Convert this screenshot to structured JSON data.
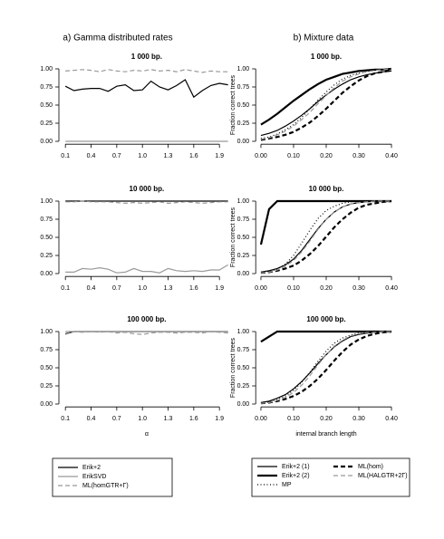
{
  "headings": [
    "a) Gamma distributed rates",
    "b) Mixture data"
  ],
  "chart_data": [
    {
      "type": "line",
      "title": "1 000 bp.",
      "x": [
        0.1,
        0.2,
        0.3,
        0.4,
        0.5,
        0.6,
        0.7,
        0.8,
        0.9,
        1.0,
        1.1,
        1.2,
        1.3,
        1.4,
        1.5,
        1.6,
        1.7,
        1.8,
        1.9,
        2.0
      ],
      "xlim": [
        0.024,
        2.076
      ],
      "xticks": [
        0.1,
        0.4,
        0.7,
        {
          "value": 1,
          "label": "1.0"
        },
        1.3,
        1.6,
        1.9
      ],
      "ylim": [
        -0.04,
        1.04
      ],
      "yticks": [
        {
          "value": 0,
          "label": "0.00"
        },
        {
          "value": 0.25,
          "label": "0.25"
        },
        {
          "value": 0.5,
          "label": "0.50"
        },
        {
          "value": 0.75,
          "label": "0.75"
        },
        {
          "value": 1,
          "label": "1.00"
        }
      ],
      "series": [
        {
          "name": "Erik+2",
          "color": "#000000",
          "style": "solid",
          "weight": "normal",
          "values": [
            0.76,
            0.7,
            0.72,
            0.73,
            0.73,
            0.69,
            0.76,
            0.78,
            0.7,
            0.71,
            0.83,
            0.75,
            0.71,
            0.77,
            0.85,
            0.61,
            0.7,
            0.77,
            0.8,
            0.78
          ]
        },
        {
          "name": "ErikSVD",
          "color": "#999999",
          "style": "solid",
          "weight": "normal",
          "values": [
            0,
            0,
            0,
            0,
            0,
            0,
            0,
            0,
            0,
            0,
            0,
            0,
            0,
            0,
            0,
            0,
            0,
            0,
            0,
            0
          ]
        },
        {
          "name": "ML(homGTR+Γ)",
          "color": "#999999",
          "style": "dashed",
          "weight": "normal",
          "values": [
            0.97,
            0.98,
            0.99,
            0.98,
            0.96,
            0.99,
            0.97,
            0.96,
            0.98,
            0.97,
            0.99,
            0.97,
            0.98,
            0.96,
            0.99,
            0.97,
            0.95,
            0.97,
            0.96,
            0.96
          ]
        }
      ]
    },
    {
      "type": "line",
      "title": "10 000 bp.",
      "x": [
        0.1,
        0.2,
        0.3,
        0.4,
        0.5,
        0.6,
        0.7,
        0.8,
        0.9,
        1.0,
        1.1,
        1.2,
        1.3,
        1.4,
        1.5,
        1.6,
        1.7,
        1.8,
        1.9,
        2.0
      ],
      "xlim": [
        0.024,
        2.076
      ],
      "xticks": [
        0.1,
        0.4,
        0.7,
        {
          "value": 1,
          "label": "1.0"
        },
        1.3,
        1.6,
        1.9
      ],
      "ylim": [
        -0.04,
        1.04
      ],
      "yticks": [
        {
          "value": 0,
          "label": "0.00"
        },
        {
          "value": 0.25,
          "label": "0.25"
        },
        {
          "value": 0.5,
          "label": "0.50"
        },
        {
          "value": 0.75,
          "label": "0.75"
        },
        {
          "value": 1,
          "label": "1.00"
        }
      ],
      "series": [
        {
          "name": "Erik+2",
          "color": "#000000",
          "style": "solid",
          "weight": "normal",
          "values": [
            1,
            1,
            1,
            1,
            1,
            1,
            1,
            1,
            1,
            1,
            1,
            1,
            1,
            1,
            1,
            1,
            1,
            1,
            1,
            1
          ]
        },
        {
          "name": "ErikSVD",
          "color": "#999999",
          "style": "solid",
          "weight": "normal",
          "values": [
            0.02,
            0.02,
            0.07,
            0.06,
            0.08,
            0.06,
            0.01,
            0.02,
            0.07,
            0.03,
            0.03,
            0.01,
            0.07,
            0.04,
            0.03,
            0.04,
            0.03,
            0.05,
            0.05,
            0.12
          ]
        },
        {
          "name": "ML(homGTR+Γ)",
          "color": "#999999",
          "style": "dashed",
          "weight": "normal",
          "values": [
            0.99,
            0.99,
            1,
            0.99,
            0.99,
            0.99,
            0.98,
            0.97,
            0.98,
            0.97,
            0.98,
            0.99,
            0.97,
            0.98,
            0.99,
            0.98,
            0.97,
            0.98,
            0.99,
            0.99
          ]
        }
      ]
    },
    {
      "type": "line",
      "title": "100 000 bp.",
      "xlabel": "α",
      "x": [
        0.1,
        0.2,
        0.3,
        0.4,
        0.5,
        0.6,
        0.7,
        0.8,
        0.9,
        1.0,
        1.1,
        1.2,
        1.3,
        1.4,
        1.5,
        1.6,
        1.7,
        1.8,
        1.9,
        2.0
      ],
      "xlim": [
        0.024,
        2.076
      ],
      "xticks": [
        0.1,
        0.4,
        0.7,
        {
          "value": 1,
          "label": "1.0"
        },
        1.3,
        1.6,
        1.9
      ],
      "ylim": [
        -0.04,
        1.04
      ],
      "yticks": [
        {
          "value": 0,
          "label": "0.00"
        },
        {
          "value": 0.25,
          "label": "0.25"
        },
        {
          "value": 0.5,
          "label": "0.50"
        },
        {
          "value": 0.75,
          "label": "0.75"
        },
        {
          "value": 1,
          "label": "1.00"
        }
      ],
      "series": [
        {
          "name": "Erik+2",
          "color": "#000000",
          "style": "solid",
          "weight": "normal",
          "values": [
            0.97,
            1,
            1,
            1,
            1,
            1,
            1,
            1,
            1,
            1,
            1,
            1,
            1,
            1,
            1,
            1,
            1,
            1,
            1,
            1
          ]
        },
        {
          "name": "ErikSVD",
          "color": "#999999",
          "style": "solid",
          "weight": "normal",
          "values": [
            1,
            1,
            1,
            1,
            1,
            1,
            1,
            1,
            1,
            1,
            1,
            1,
            1,
            1,
            1,
            1,
            1,
            1,
            1,
            1
          ]
        },
        {
          "name": "ML(homGTR+Γ)",
          "color": "#999999",
          "style": "dashed",
          "weight": "normal",
          "values": [
            0.96,
            1,
            0.99,
            1,
            0.99,
            1,
            0.98,
            0.99,
            0.97,
            0.96,
            0.98,
            0.99,
            0.99,
            0.98,
            0.99,
            0.99,
            0.98,
            1,
            0.99,
            0.98
          ]
        }
      ]
    },
    {
      "type": "line",
      "title": "1 000 bp.",
      "ylabel": "Fraction correct trees",
      "x": [
        0,
        0.025,
        0.05,
        0.075,
        0.1,
        0.125,
        0.15,
        0.175,
        0.2,
        0.225,
        0.25,
        0.275,
        0.3,
        0.325,
        0.35,
        0.375,
        0.4
      ],
      "xlim": [
        -0.016,
        0.416
      ],
      "xticks": [
        {
          "value": 0,
          "label": "0.00"
        },
        {
          "value": 0.1,
          "label": "0.10"
        },
        {
          "value": 0.2,
          "label": "0.20"
        },
        {
          "value": 0.3,
          "label": "0.30"
        },
        {
          "value": 0.4,
          "label": "0.40"
        }
      ],
      "ylim": [
        -0.04,
        1.04
      ],
      "yticks": [
        {
          "value": 0,
          "label": "0.00"
        },
        {
          "value": 0.25,
          "label": "0.25"
        },
        {
          "value": 0.5,
          "label": "0.50"
        },
        {
          "value": 0.75,
          "label": "0.75"
        },
        {
          "value": 1,
          "label": "1.00"
        }
      ],
      "series": [
        {
          "name": "Erik+2 (1)",
          "color": "#000000",
          "style": "solid",
          "weight": "normal",
          "values": [
            0.08,
            0.11,
            0.15,
            0.21,
            0.28,
            0.36,
            0.45,
            0.55,
            0.64,
            0.72,
            0.79,
            0.85,
            0.89,
            0.92,
            0.94,
            0.96,
            0.97
          ]
        },
        {
          "name": "Erik+2 (2)",
          "color": "#000000",
          "style": "solid",
          "weight": "thick",
          "values": [
            0.23,
            0.3,
            0.38,
            0.47,
            0.56,
            0.64,
            0.72,
            0.79,
            0.85,
            0.89,
            0.93,
            0.95,
            0.97,
            0.98,
            0.99,
            0.99,
            1
          ]
        },
        {
          "name": "MP",
          "color": "#000000",
          "style": "dotted",
          "weight": "normal",
          "values": [
            0.04,
            0.06,
            0.1,
            0.16,
            0.23,
            0.33,
            0.45,
            0.57,
            0.68,
            0.78,
            0.86,
            0.91,
            0.94,
            0.96,
            0.98,
            0.99,
            1
          ]
        },
        {
          "name": "ML(hom)",
          "color": "#000000",
          "style": "dashed",
          "weight": "thick",
          "values": [
            0.02,
            0.04,
            0.06,
            0.09,
            0.13,
            0.19,
            0.26,
            0.35,
            0.45,
            0.56,
            0.67,
            0.76,
            0.84,
            0.9,
            0.94,
            0.96,
            0.98
          ]
        },
        {
          "name": "ML(HALGTR+2Γ)",
          "color": "#999999",
          "style": "dashed",
          "weight": "normal",
          "values": [
            0.03,
            0.05,
            0.09,
            0.14,
            0.21,
            0.3,
            0.4,
            0.52,
            0.63,
            0.74,
            0.83,
            0.89,
            0.93,
            0.96,
            0.98,
            0.99,
            1
          ]
        }
      ]
    },
    {
      "type": "line",
      "title": "10 000 bp.",
      "ylabel": "Fraction correct trees",
      "x": [
        0,
        0.025,
        0.05,
        0.075,
        0.1,
        0.125,
        0.15,
        0.175,
        0.2,
        0.225,
        0.25,
        0.275,
        0.3,
        0.325,
        0.35,
        0.375,
        0.4
      ],
      "xlim": [
        -0.016,
        0.416
      ],
      "xticks": [
        {
          "value": 0,
          "label": "0.00"
        },
        {
          "value": 0.1,
          "label": "0.10"
        },
        {
          "value": 0.2,
          "label": "0.20"
        },
        {
          "value": 0.3,
          "label": "0.30"
        },
        {
          "value": 0.4,
          "label": "0.40"
        }
      ],
      "ylim": [
        -0.04,
        1.04
      ],
      "yticks": [
        {
          "value": 0,
          "label": "0.00"
        },
        {
          "value": 0.25,
          "label": "0.25"
        },
        {
          "value": 0.5,
          "label": "0.50"
        },
        {
          "value": 0.75,
          "label": "0.75"
        },
        {
          "value": 1,
          "label": "1.00"
        }
      ],
      "series": [
        {
          "name": "Erik+2 (1)",
          "color": "#000000",
          "style": "solid",
          "weight": "normal",
          "values": [
            0.02,
            0.04,
            0.07,
            0.12,
            0.2,
            0.32,
            0.47,
            0.62,
            0.75,
            0.85,
            0.92,
            0.96,
            0.98,
            0.99,
            1,
            1,
            1
          ]
        },
        {
          "name": "Erik+2 (2)",
          "color": "#000000",
          "style": "solid",
          "weight": "thick",
          "values": [
            0.4,
            0.89,
            1,
            1,
            1,
            1,
            1,
            1,
            1,
            1,
            1,
            1,
            1,
            1,
            1,
            1,
            1
          ]
        },
        {
          "name": "MP",
          "color": "#000000",
          "style": "dotted",
          "weight": "normal",
          "values": [
            0.02,
            0.03,
            0.06,
            0.13,
            0.25,
            0.42,
            0.6,
            0.76,
            0.87,
            0.93,
            0.97,
            0.99,
            1,
            1,
            1,
            1,
            1
          ]
        },
        {
          "name": "ML(hom)",
          "color": "#000000",
          "style": "dashed",
          "weight": "thick",
          "values": [
            0.01,
            0.02,
            0.04,
            0.07,
            0.11,
            0.18,
            0.27,
            0.38,
            0.51,
            0.64,
            0.75,
            0.84,
            0.91,
            0.95,
            0.97,
            0.99,
            1
          ]
        },
        {
          "name": "ML(HALGTR+2Γ)",
          "color": "#999999",
          "style": "dashed",
          "weight": "normal",
          "values": [
            0.01,
            0.02,
            0.05,
            0.1,
            0.18,
            0.3,
            0.45,
            0.61,
            0.75,
            0.85,
            0.92,
            0.96,
            0.98,
            0.99,
            1,
            1,
            1
          ]
        }
      ]
    },
    {
      "type": "line",
      "title": "100 000 bp.",
      "ylabel": "Fraction correct trees",
      "xlabel": "internal branch length",
      "x": [
        0,
        0.025,
        0.05,
        0.075,
        0.1,
        0.125,
        0.15,
        0.175,
        0.2,
        0.225,
        0.25,
        0.275,
        0.3,
        0.325,
        0.35,
        0.375,
        0.4
      ],
      "xlim": [
        -0.016,
        0.416
      ],
      "xticks": [
        {
          "value": 0,
          "label": "0.00"
        },
        {
          "value": 0.1,
          "label": "0.10"
        },
        {
          "value": 0.2,
          "label": "0.20"
        },
        {
          "value": 0.3,
          "label": "0.30"
        },
        {
          "value": 0.4,
          "label": "0.40"
        }
      ],
      "ylim": [
        -0.04,
        1.04
      ],
      "yticks": [
        {
          "value": 0,
          "label": "0.00"
        },
        {
          "value": 0.25,
          "label": "0.25"
        },
        {
          "value": 0.5,
          "label": "0.50"
        },
        {
          "value": 0.75,
          "label": "0.75"
        },
        {
          "value": 1,
          "label": "1.00"
        }
      ],
      "series": [
        {
          "name": "Erik+2 (1)",
          "color": "#000000",
          "style": "solid",
          "weight": "normal",
          "values": [
            0.02,
            0.04,
            0.08,
            0.13,
            0.21,
            0.31,
            0.43,
            0.56,
            0.68,
            0.79,
            0.87,
            0.93,
            0.96,
            0.98,
            0.99,
            1,
            1
          ]
        },
        {
          "name": "Erik+2 (2)",
          "color": "#000000",
          "style": "solid",
          "weight": "thick",
          "values": [
            0.86,
            0.93,
            1,
            1,
            1,
            1,
            1,
            1,
            1,
            1,
            1,
            1,
            1,
            1,
            1,
            1,
            1
          ]
        },
        {
          "name": "MP",
          "color": "#000000",
          "style": "dotted",
          "weight": "normal",
          "values": [
            0.01,
            0.03,
            0.06,
            0.11,
            0.19,
            0.3,
            0.44,
            0.59,
            0.73,
            0.84,
            0.91,
            0.95,
            0.98,
            0.99,
            1,
            1,
            1
          ]
        },
        {
          "name": "ML(hom)",
          "color": "#000000",
          "style": "dashed",
          "weight": "thick",
          "values": [
            0.01,
            0.02,
            0.04,
            0.07,
            0.11,
            0.17,
            0.25,
            0.35,
            0.47,
            0.6,
            0.72,
            0.82,
            0.89,
            0.94,
            0.97,
            0.99,
            1
          ]
        },
        {
          "name": "ML(HALGTR+2Γ)",
          "color": "#999999",
          "style": "dashed",
          "weight": "normal",
          "values": [
            0.01,
            0.02,
            0.05,
            0.09,
            0.16,
            0.26,
            0.39,
            0.54,
            0.68,
            0.8,
            0.88,
            0.94,
            0.97,
            0.99,
            0.99,
            1,
            1
          ]
        }
      ]
    }
  ]
}
